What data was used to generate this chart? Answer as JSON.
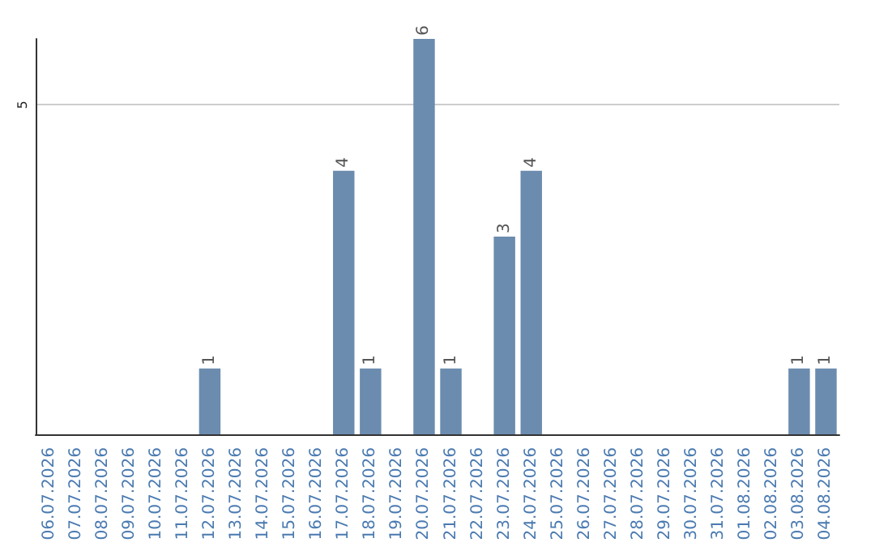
{
  "chart_data": {
    "type": "bar",
    "categories": [
      "06.07.2026",
      "07.07.2026",
      "08.07.2026",
      "09.07.2026",
      "10.07.2026",
      "11.07.2026",
      "12.07.2026",
      "13.07.2026",
      "14.07.2026",
      "15.07.2026",
      "16.07.2026",
      "17.07.2026",
      "18.07.2026",
      "19.07.2026",
      "20.07.2026",
      "21.07.2026",
      "22.07.2026",
      "23.07.2026",
      "24.07.2026",
      "25.07.2026",
      "26.07.2026",
      "27.07.2026",
      "28.07.2026",
      "29.07.2026",
      "30.07.2026",
      "31.07.2026",
      "01.08.2026",
      "02.08.2026",
      "03.08.2026",
      "04.08.2026"
    ],
    "values": [
      0,
      0,
      0,
      0,
      0,
      0,
      1,
      0,
      0,
      0,
      0,
      4,
      1,
      0,
      6,
      1,
      0,
      3,
      4,
      0,
      0,
      0,
      0,
      0,
      0,
      0,
      0,
      0,
      1,
      1
    ],
    "color": "#6b8cae",
    "value_labels": [
      null,
      null,
      null,
      null,
      null,
      null,
      "1",
      null,
      null,
      null,
      null,
      "4",
      "1",
      null,
      "6",
      "1",
      null,
      "3",
      "4",
      null,
      null,
      null,
      null,
      null,
      null,
      null,
      null,
      null,
      "1",
      "1"
    ],
    "ylim": [
      0,
      6
    ],
    "yticks": [
      5
    ],
    "grid": "y"
  }
}
